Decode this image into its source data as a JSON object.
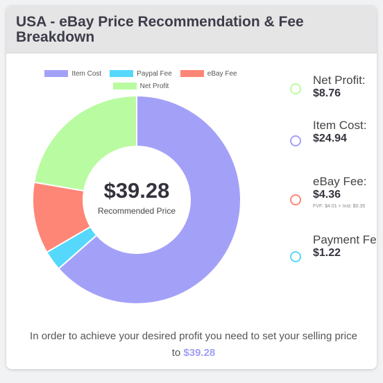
{
  "title": "USA - eBay Price Recommendation & Fee Breakdown",
  "chart_data": {
    "type": "doughnut",
    "legend_position": "top",
    "series": [
      {
        "name": "Item Cost",
        "value": 24.94,
        "color": "#a3a1f7"
      },
      {
        "name": "Paypal Fee",
        "value": 1.22,
        "color": "#55d8fb"
      },
      {
        "name": "eBay Fee",
        "value": 4.36,
        "color": "#fe8676"
      },
      {
        "name": "Net Profit",
        "value": 8.76,
        "color": "#b9fba1"
      }
    ],
    "center_value": "$39.28",
    "center_label": "Recommended Price"
  },
  "stats": [
    {
      "label": "Net Profit:",
      "value": "$8.76",
      "color": "#b9fba1"
    },
    {
      "label": "Item Cost:",
      "value": "$24.94",
      "color": "#a3a1f7"
    },
    {
      "label": "eBay Fee:",
      "value": "$4.36",
      "sub": "FVF: $4.01 + Inst: $0.35",
      "color": "#fe8676"
    },
    {
      "label": "Payment Fee:",
      "value": "$1.22",
      "color": "#55d8fb"
    }
  ],
  "footer": {
    "text": "In order to achieve your desired profit you need to set your selling price to",
    "price": "$39.28"
  }
}
